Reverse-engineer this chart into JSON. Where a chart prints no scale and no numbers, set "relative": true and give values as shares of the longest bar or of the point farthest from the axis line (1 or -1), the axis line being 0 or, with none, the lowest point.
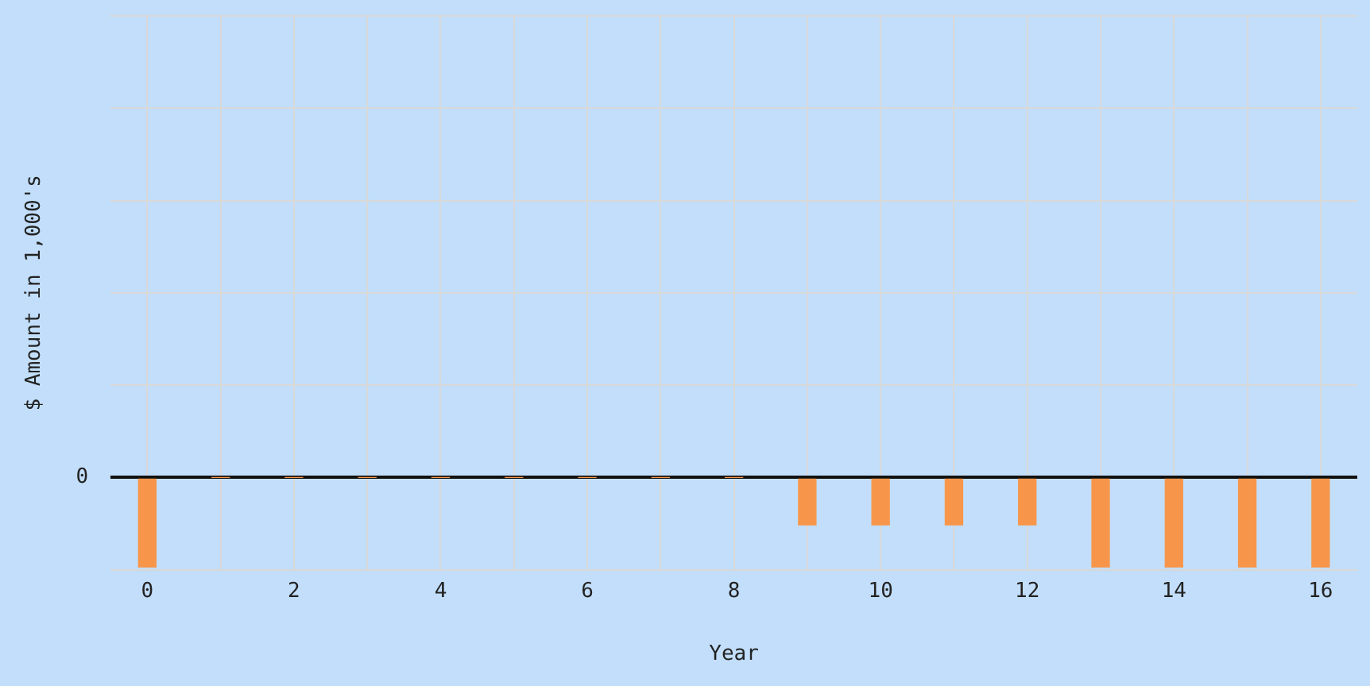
{
  "chart_data": {
    "type": "bar",
    "xlabel": "Year",
    "ylabel": "$ Amount in 1,000's",
    "categories": [
      "0",
      null,
      "2",
      null,
      "4",
      null,
      "6",
      null,
      "8",
      null,
      "10",
      null,
      "12",
      null,
      "14",
      null,
      "16"
    ],
    "values": [
      -1,
      0,
      0,
      0,
      0,
      0,
      0,
      0,
      0,
      -0.53,
      -0.53,
      -0.53,
      -0.53,
      -1,
      -1,
      -1,
      -1
    ],
    "color": "#f7964a",
    "relative": true,
    "grid": true,
    "legend": false,
    "annotations": [
      "0"
    ]
  }
}
